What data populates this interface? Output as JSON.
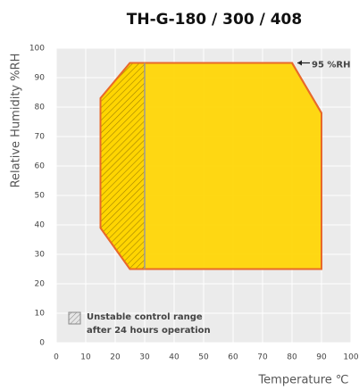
{
  "chart_data": {
    "type": "polygon",
    "title": "TH-G-180 / 300 / 408",
    "x_label": "Temperature ℃",
    "y_label": "Relative Humidity %RH",
    "xlim": [
      0,
      100
    ],
    "ylim": [
      0,
      100
    ],
    "xticks": [
      0,
      10,
      20,
      30,
      40,
      50,
      60,
      70,
      80,
      90,
      100
    ],
    "yticks": [
      0,
      10,
      20,
      30,
      40,
      50,
      60,
      70,
      80,
      90,
      100
    ],
    "grid": true,
    "operating_range": {
      "color": "#ffd500",
      "edge_color": "#e8692a",
      "x": [
        25,
        90,
        90,
        80,
        25,
        15,
        15
      ],
      "y": [
        25,
        25,
        78,
        95,
        95,
        83,
        39
      ]
    },
    "unstable_range": {
      "color": "#e0b800",
      "edge_color": "#9a9a9a",
      "x": [
        15,
        25,
        30,
        30,
        25,
        15
      ],
      "y": [
        83,
        95,
        95,
        25,
        25,
        39
      ],
      "legend": [
        "Unstable control range",
        "after 24 hours operation"
      ]
    },
    "annotation": "95 %RH"
  }
}
